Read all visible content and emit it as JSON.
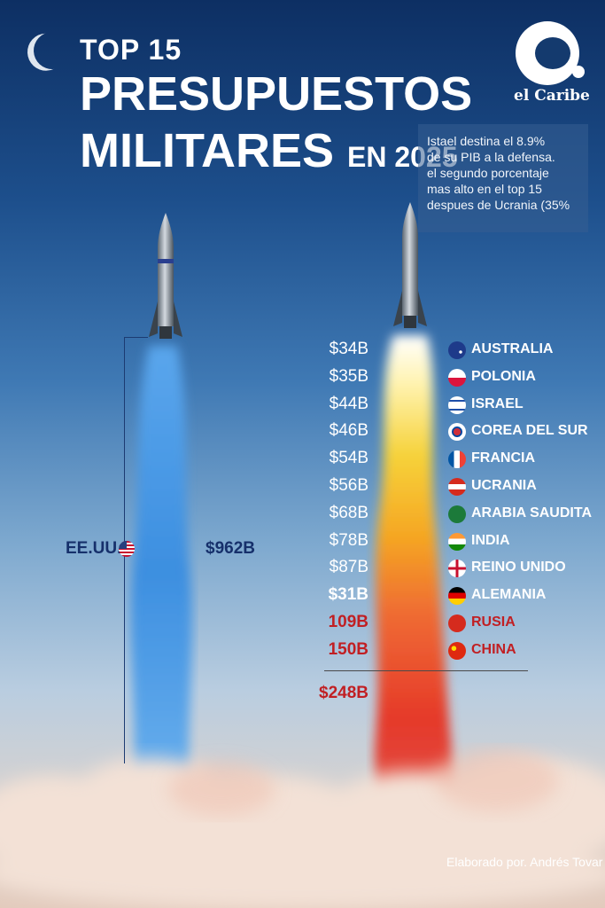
{
  "header": {
    "line1": "TOP 15",
    "line2": "PRESUPUESTOS",
    "line3_main": "MILITARES",
    "line3_small": "EN 2025"
  },
  "logo": {
    "letter_icon": "c-logo-icon",
    "text": "el Caribe"
  },
  "note": {
    "lines": [
      "Istael destina el 8.9%",
      "de su PIB a la defensa.",
      "el segundo porcentaje",
      "mas alto en el top 15",
      "despues de Ucrania (35%"
    ]
  },
  "colors": {
    "navy": "#16306b",
    "accent_red": "#c11f23",
    "plume_blue": "#3d8fe0",
    "plume_yellow": "#f6d23a",
    "plume_red": "#e5392a"
  },
  "chart_data": {
    "type": "table",
    "series": [
      {
        "country": "EE.UU.",
        "amount_label": "$962B",
        "value": 962,
        "flag": "usa-flag-icon"
      }
    ],
    "rows": [
      {
        "amount_label": "$34B",
        "value": 34,
        "country": "AUSTRALIA",
        "flag": "australia-flag-icon",
        "style": "white"
      },
      {
        "amount_label": "$35B",
        "value": 35,
        "country": "POLONIA",
        "flag": "poland-flag-icon",
        "style": "white"
      },
      {
        "amount_label": "$44B",
        "value": 44,
        "country": "ISRAEL",
        "flag": "israel-flag-icon",
        "style": "white"
      },
      {
        "amount_label": "$46B",
        "value": 46,
        "country": "COREA DEL SUR",
        "flag": "south-korea-flag-icon",
        "style": "white"
      },
      {
        "amount_label": "$54B",
        "value": 54,
        "country": "FRANCIA",
        "flag": "france-flag-icon",
        "style": "white"
      },
      {
        "amount_label": "$56B",
        "value": 56,
        "country": "UCRANIA",
        "flag": "ukraine-flag-icon",
        "style": "white"
      },
      {
        "amount_label": "$68B",
        "value": 68,
        "country": "ARABIA SAUDITA",
        "flag": "saudi-arabia-flag-icon",
        "style": "white"
      },
      {
        "amount_label": "$78B",
        "value": 78,
        "country": "INDIA",
        "flag": "india-flag-icon",
        "style": "white"
      },
      {
        "amount_label": "$87B",
        "value": 87,
        "country": "REINO UNIDO",
        "flag": "uk-flag-icon",
        "style": "white"
      },
      {
        "amount_label": "$31B",
        "value": 31,
        "country": "ALEMANIA",
        "flag": "germany-flag-icon",
        "style": "whitebold"
      },
      {
        "amount_label": "109B",
        "value": 109,
        "country": "RUSIA",
        "flag": "russia-flag-icon",
        "style": "red"
      },
      {
        "amount_label": "150B",
        "value": 150,
        "country": "CHINA",
        "flag": "china-flag-icon",
        "style": "red"
      }
    ],
    "total_label": "$248B"
  },
  "credit": "Elaborado por. Andrés Tovar"
}
